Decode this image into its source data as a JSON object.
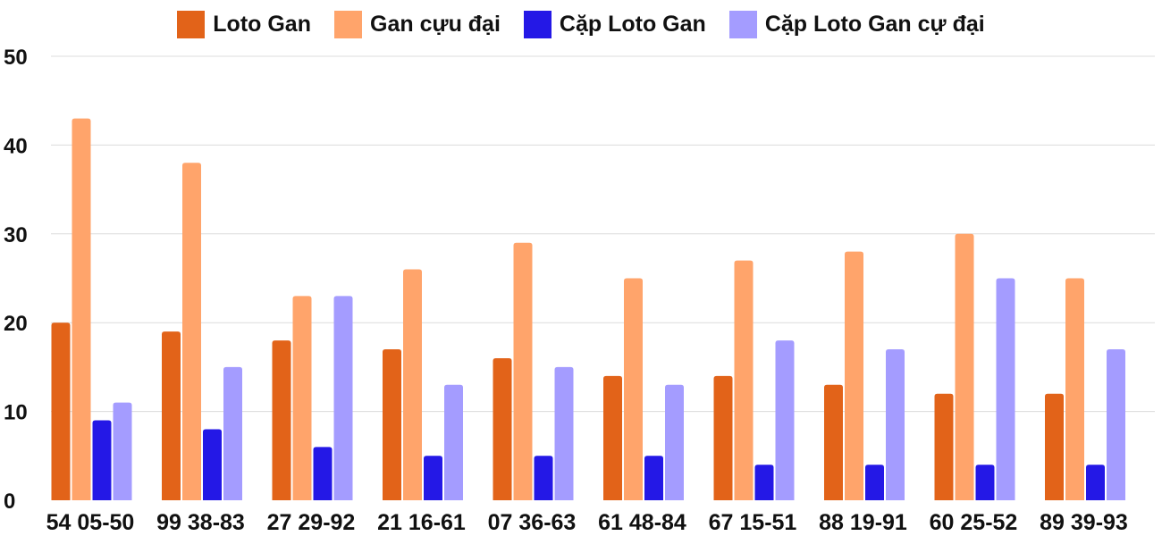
{
  "chart_data": {
    "type": "bar",
    "title": "",
    "xlabel": "",
    "ylabel": "",
    "ylim": [
      0,
      50
    ],
    "yticks": [
      0,
      10,
      20,
      30,
      40,
      50
    ],
    "grid": true,
    "legend_position": "top-center",
    "categories": [
      "54 05-50",
      "99 38-83",
      "27 29-92",
      "21 16-61",
      "07 36-63",
      "61 48-84",
      "67 15-51",
      "88 19-91",
      "60 25-52",
      "89 39-93"
    ],
    "series": [
      {
        "name": "Loto Gan",
        "color": "#e26319",
        "values": [
          20,
          19,
          18,
          17,
          16,
          14,
          14,
          13,
          12,
          12
        ]
      },
      {
        "name": "Gan cựu đại",
        "color": "#ffa46b",
        "values": [
          43,
          38,
          23,
          26,
          29,
          25,
          27,
          28,
          30,
          25
        ]
      },
      {
        "name": "Cặp Loto Gan",
        "color": "#2418e6",
        "values": [
          9,
          8,
          6,
          5,
          5,
          5,
          4,
          4,
          4,
          4
        ]
      },
      {
        "name": "Cặp Loto Gan cự đại",
        "color": "#a49cff",
        "values": [
          11,
          15,
          23,
          13,
          15,
          13,
          18,
          17,
          25,
          17
        ]
      }
    ]
  }
}
